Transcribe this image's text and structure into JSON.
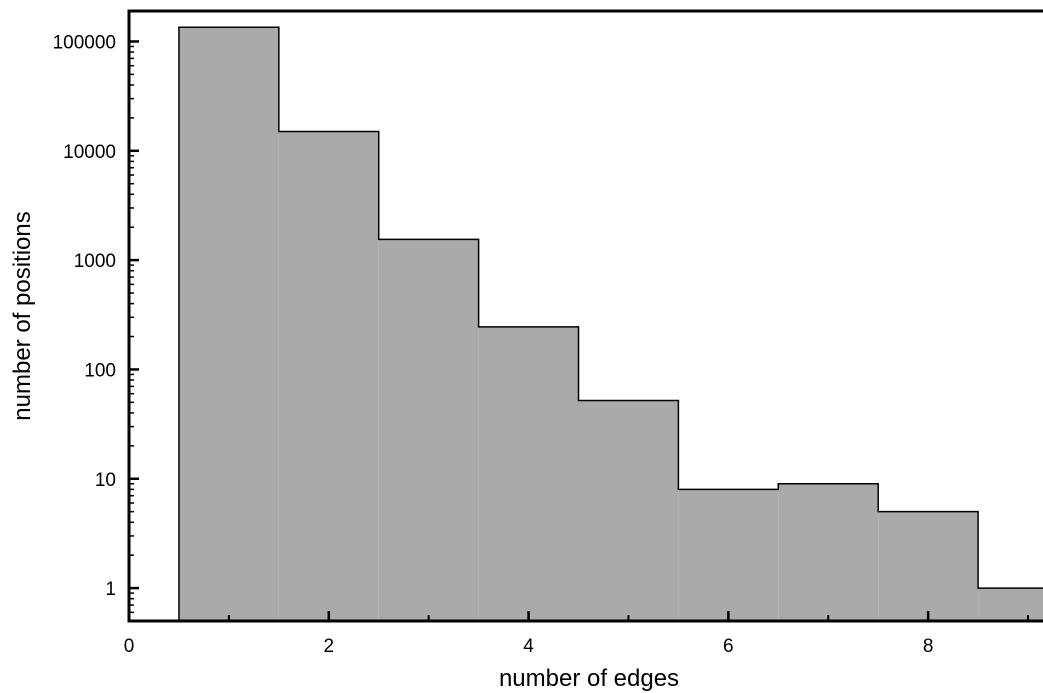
{
  "chart_data": {
    "type": "bar",
    "subtype": "histogram",
    "title": "",
    "xlabel": "number of edges",
    "ylabel": "number of positions",
    "xlim": [
      0,
      9.15
    ],
    "ylim": [
      0.5,
      190000
    ],
    "yscale": "log",
    "grid": false,
    "legend": "none",
    "bin_width": 1,
    "x": [
      1,
      2,
      3,
      4,
      5,
      6,
      7,
      8,
      9
    ],
    "values": [
      135000,
      15000,
      1550,
      245,
      52,
      8,
      9,
      5,
      1
    ],
    "x_ticks": [
      0,
      2,
      4,
      6,
      8
    ],
    "x_tick_labels": [
      "0",
      "2",
      "4",
      "6",
      "8"
    ],
    "x_minor_ticks": [
      1,
      3,
      5,
      7,
      9
    ],
    "y_ticks": [
      1,
      10,
      100,
      1000,
      10000,
      100000
    ],
    "y_tick_labels": [
      "1",
      "10",
      "100",
      "1000",
      "10000",
      "100000"
    ],
    "colors": {
      "bar_fill": "#aaaaaa",
      "bar_stroke": "#000000",
      "axis": "#000000",
      "background": "#ffffff"
    }
  }
}
